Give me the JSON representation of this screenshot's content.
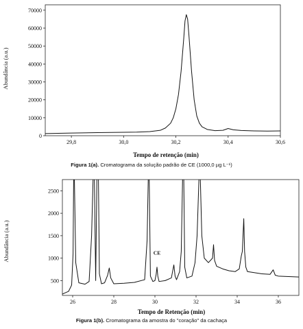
{
  "chart_data": [
    {
      "type": "line",
      "caption_label": "Figura 1(a).",
      "caption_text": "Cromatograma da solução padrão de CE (1000,0 µg L⁻¹)",
      "xlabel": "Tempo de retenção (min)",
      "ylabel": "Abundância (a.u.)",
      "xlim": [
        29.7,
        30.6
      ],
      "ylim": [
        0,
        73000
      ],
      "x_ticks": [
        29.8,
        30.0,
        30.2,
        30.4,
        30.6
      ],
      "x_tick_labels": [
        "29,8",
        "30,0",
        "30,2",
        "30,4",
        "30,6"
      ],
      "y_ticks": [
        0,
        10000,
        20000,
        30000,
        40000,
        50000,
        60000,
        70000
      ],
      "y_tick_labels": [
        "0",
        "10000",
        "20000",
        "30000",
        "40000",
        "50000",
        "60000",
        "70000"
      ],
      "grid": false,
      "series": [
        {
          "x": [
            29.7,
            29.8,
            29.9,
            30.0,
            30.05,
            30.1,
            30.14,
            30.16,
            30.18,
            30.19,
            30.2,
            30.21,
            30.22,
            30.23,
            30.235,
            30.24,
            30.245,
            30.25,
            30.26,
            30.27,
            30.28,
            30.29,
            30.3,
            30.32,
            30.35,
            30.38,
            30.4,
            30.42,
            30.45,
            30.5,
            30.55,
            30.6
          ],
          "y": [
            1200,
            1500,
            1700,
            1900,
            2000,
            2300,
            3000,
            4300,
            7000,
            10000,
            15000,
            23000,
            36000,
            54000,
            64000,
            67500,
            65000,
            56000,
            36000,
            20000,
            11000,
            7000,
            5000,
            3500,
            2800,
            3000,
            4000,
            3300,
            2900,
            2700,
            2600,
            2700
          ]
        }
      ]
    },
    {
      "type": "line",
      "caption_label": "Figura 1(b).",
      "caption_text": "Cromatograma da amostra do \"coração\" da cachaça",
      "xlabel": "Tempo de Retenção (min)",
      "ylabel": "Abundância (a.u.)",
      "xlim": [
        25.5,
        37.0
      ],
      "ylim": [
        170,
        2750
      ],
      "x_ticks": [
        26,
        28,
        30,
        32,
        34,
        36
      ],
      "x_tick_labels": [
        "26",
        "28",
        "30",
        "32",
        "34",
        "36"
      ],
      "y_ticks": [
        500,
        1000,
        1500,
        2000,
        2500
      ],
      "y_tick_labels": [
        "500",
        "1000",
        "1500",
        "2000",
        "2500"
      ],
      "grid": false,
      "annotations": [
        {
          "text": "CE",
          "x": 30.1,
          "y": 1000
        }
      ],
      "series": [
        {
          "x": [
            25.5,
            25.8,
            25.95,
            26.02,
            26.05,
            26.08,
            26.15,
            26.3,
            26.6,
            26.8,
            26.92,
            27.0,
            27.05,
            27.12,
            27.18,
            27.25,
            27.3,
            27.4,
            27.55,
            27.7,
            27.78,
            27.85,
            28.0,
            28.5,
            29.0,
            29.5,
            29.62,
            29.68,
            29.72,
            29.78,
            29.9,
            30.0,
            30.06,
            30.1,
            30.14,
            30.2,
            30.5,
            30.8,
            30.92,
            30.98,
            31.05,
            31.2,
            31.28,
            31.35,
            31.4,
            31.45,
            31.55,
            31.8,
            31.95,
            32.05,
            32.15,
            32.2,
            32.28,
            32.4,
            32.6,
            32.8,
            32.85,
            32.9,
            33.0,
            33.3,
            33.6,
            33.9,
            34.1,
            34.2,
            34.25,
            34.32,
            34.36,
            34.42,
            34.5,
            34.8,
            35.2,
            35.6,
            35.75,
            35.85,
            36.0,
            36.5,
            37.0
          ],
          "y": [
            200,
            260,
            400,
            1100,
            2900,
            2900,
            900,
            450,
            420,
            480,
            1500,
            2900,
            2900,
            500,
            2900,
            2900,
            650,
            430,
            450,
            620,
            780,
            560,
            430,
            440,
            460,
            520,
            1400,
            2900,
            2900,
            600,
            480,
            500,
            640,
            800,
            600,
            480,
            500,
            560,
            850,
            600,
            520,
            700,
            1150,
            2900,
            2900,
            800,
            560,
            600,
            900,
            1500,
            2900,
            2900,
            1500,
            1000,
            900,
            1000,
            1300,
            950,
            820,
            760,
            720,
            700,
            760,
            1050,
            1150,
            1880,
            1150,
            800,
            700,
            680,
            650,
            640,
            740,
            620,
            600,
            590,
            580
          ]
        }
      ]
    }
  ]
}
